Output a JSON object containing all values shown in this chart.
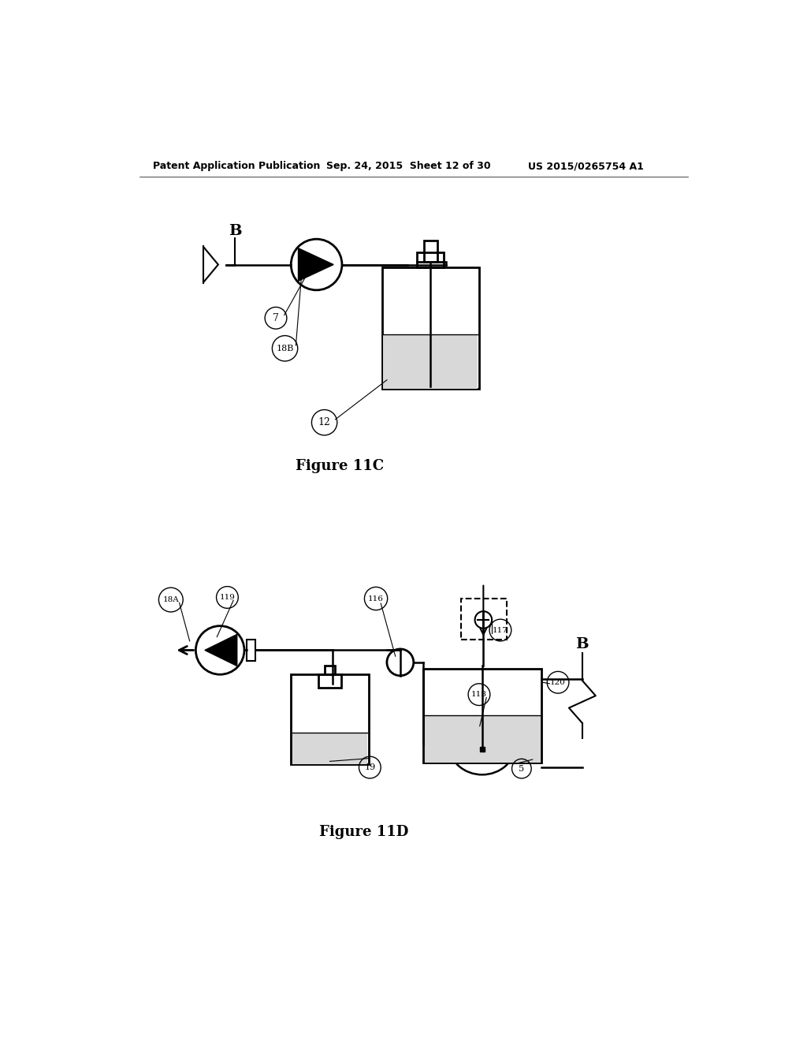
{
  "bg_color": "#ffffff",
  "header_text": "Patent Application Publication",
  "header_date": "Sep. 24, 2015  Sheet 12 of 30",
  "header_patent": "US 2015/0265754 A1",
  "fig11c_label": "Figure 11C",
  "fig11d_label": "Figure 11D",
  "label_B_11c": "B",
  "label_7": "7",
  "label_18B": "18B",
  "label_12": "12",
  "label_18A": "18A",
  "label_119": "119",
  "label_116": "116",
  "label_117": "117",
  "label_118": "118",
  "label_120": "120",
  "label_19": "19",
  "label_5": "5",
  "label_B_11d": "B"
}
